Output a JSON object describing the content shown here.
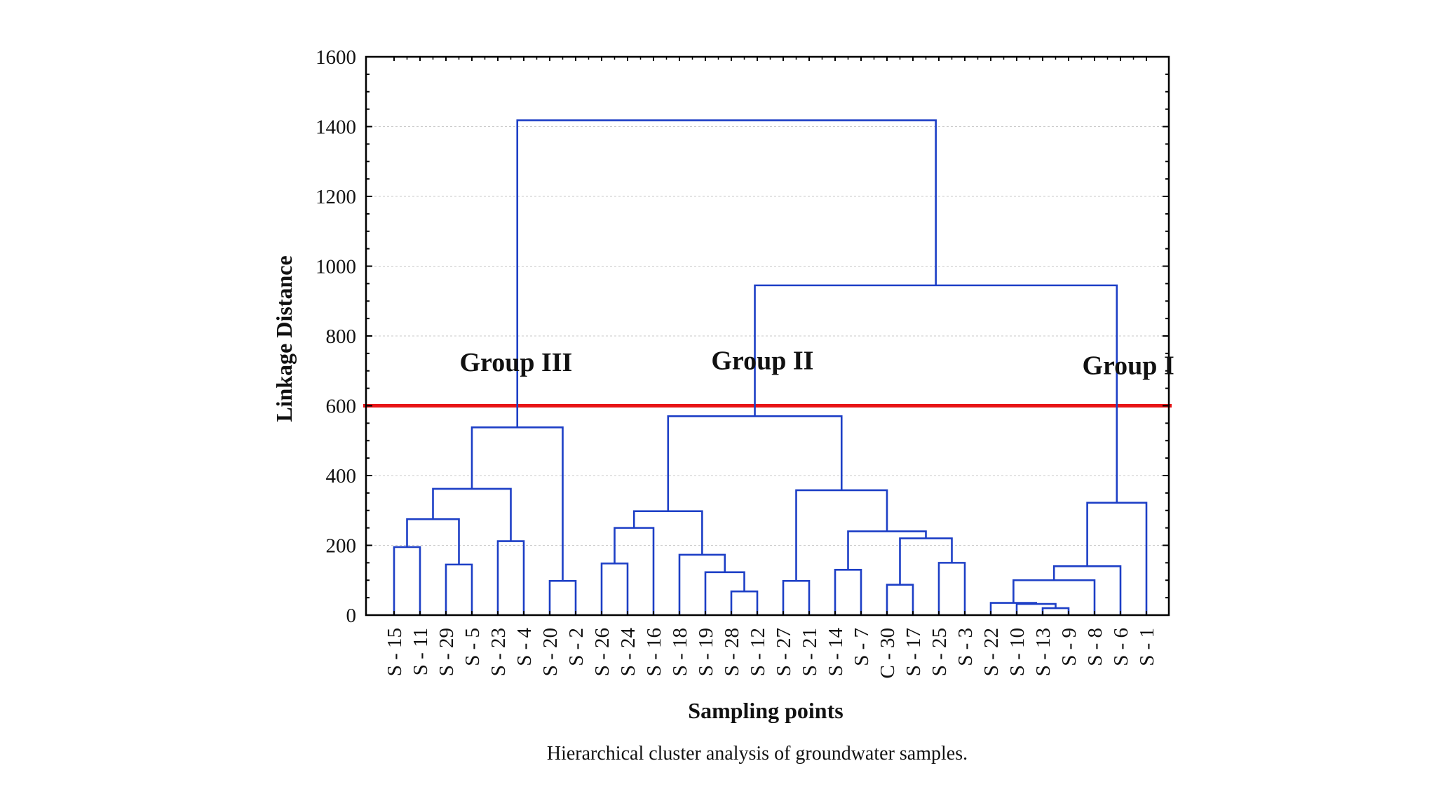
{
  "caption": "Hierarchical cluster analysis of groundwater samples.",
  "chart_data": {
    "type": "dendrogram",
    "xlabel": "Sampling points",
    "ylabel": "Linkage Distance",
    "ylim": [
      0,
      1600
    ],
    "yticks": [
      0,
      200,
      400,
      600,
      800,
      1000,
      1200,
      1400,
      1600
    ],
    "grid": true,
    "leaves": [
      "S - 15",
      "S - 11",
      "S - 29",
      "S - 5",
      "S - 23",
      "S - 4",
      "S - 20",
      "S - 2",
      "S - 26",
      "S - 24",
      "S - 16",
      "S - 18",
      "S - 19",
      "S - 28",
      "S - 12",
      "S - 27",
      "S - 21",
      "S - 14",
      "S - 7",
      "C - 30",
      "S - 17",
      "S - 25",
      "S - 3",
      "S - 22",
      "S - 10",
      "S - 13",
      "S - 9",
      "S - 8",
      "S - 6",
      "S - 1"
    ],
    "merges": [
      {
        "id": "A",
        "children": [
          "S - 15",
          "S - 11"
        ],
        "height": 195
      },
      {
        "id": "B",
        "children": [
          "S - 29",
          "S - 5"
        ],
        "height": 145
      },
      {
        "id": "C",
        "children": [
          "A",
          "B"
        ],
        "height": 275
      },
      {
        "id": "D",
        "children": [
          "S - 23",
          "S - 4"
        ],
        "height": 212
      },
      {
        "id": "E",
        "children": [
          "C",
          "D"
        ],
        "height": 362
      },
      {
        "id": "F",
        "children": [
          "S - 20",
          "S - 2"
        ],
        "height": 98
      },
      {
        "id": "G",
        "children": [
          "E",
          "F"
        ],
        "height": 538
      },
      {
        "id": "H",
        "children": [
          "S - 26",
          "S - 24"
        ],
        "height": 148
      },
      {
        "id": "I",
        "children": [
          "H",
          "S - 16"
        ],
        "height": 250
      },
      {
        "id": "J",
        "children": [
          "S - 28",
          "S - 12"
        ],
        "height": 68
      },
      {
        "id": "K",
        "children": [
          "S - 19",
          "J"
        ],
        "height": 123
      },
      {
        "id": "L",
        "children": [
          "S - 18",
          "K"
        ],
        "height": 173
      },
      {
        "id": "M",
        "children": [
          "I",
          "L"
        ],
        "height": 298
      },
      {
        "id": "N",
        "children": [
          "S - 27",
          "S - 21"
        ],
        "height": 98
      },
      {
        "id": "O",
        "children": [
          "S - 14",
          "S - 7"
        ],
        "height": 130
      },
      {
        "id": "P",
        "children": [
          "C - 30",
          "S - 17"
        ],
        "height": 87
      },
      {
        "id": "Q",
        "children": [
          "S - 25",
          "S - 3"
        ],
        "height": 150
      },
      {
        "id": "R",
        "children": [
          "P",
          "Q"
        ],
        "height": 220
      },
      {
        "id": "S",
        "children": [
          "O",
          "R"
        ],
        "height": 240
      },
      {
        "id": "T",
        "children": [
          "N",
          "S"
        ],
        "height": 358
      },
      {
        "id": "U",
        "children": [
          "M",
          "T"
        ],
        "height": 570
      },
      {
        "id": "V",
        "children": [
          "S - 13",
          "S - 9"
        ],
        "height": 20
      },
      {
        "id": "W",
        "children": [
          "S - 10",
          "V"
        ],
        "height": 32
      },
      {
        "id": "X",
        "children": [
          "S - 22",
          "W"
        ],
        "height": 35
      },
      {
        "id": "Y",
        "children": [
          "X",
          "S - 8"
        ],
        "height": 100
      },
      {
        "id": "Z",
        "children": [
          "Y",
          "S - 6"
        ],
        "height": 140
      },
      {
        "id": "AA",
        "children": [
          "Z",
          "S - 1"
        ],
        "height": 322
      },
      {
        "id": "AB",
        "children": [
          "U",
          "AA"
        ],
        "height": 945
      },
      {
        "id": "AC",
        "children": [
          "G",
          "AB"
        ],
        "height": 1418
      }
    ],
    "cutoff": {
      "value": 600,
      "color": "#e81416"
    },
    "line_color": "#1d3fc6",
    "groups": [
      {
        "label": "Group III",
        "x_leaf": 4.7,
        "y": 700
      },
      {
        "label": "Group II",
        "x_leaf": 14.2,
        "y": 705
      },
      {
        "label": "Group I",
        "x_leaf": 28.3,
        "y": 690
      }
    ]
  }
}
